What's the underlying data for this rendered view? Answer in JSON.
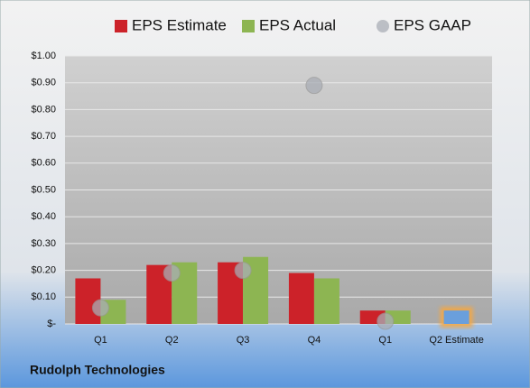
{
  "chart_data": {
    "type": "bar",
    "title": "Rudolph Technologies",
    "categories": [
      "Q1",
      "Q2",
      "Q3",
      "Q4",
      "Q1",
      "Q2 Estimate"
    ],
    "series": [
      {
        "name": "EPS Estimate",
        "type": "bar",
        "color": "#cc2229",
        "colors": [
          "#cc2229",
          "#cc2229",
          "#cc2229",
          "#cc2229",
          "#cc2229",
          "#6a9fdc"
        ],
        "values": [
          0.17,
          0.22,
          0.23,
          0.19,
          0.05,
          0.05
        ]
      },
      {
        "name": "EPS Actual",
        "type": "bar",
        "color": "#8db552",
        "values": [
          0.09,
          0.23,
          0.25,
          0.17,
          0.05,
          null
        ]
      },
      {
        "name": "EPS GAAP",
        "type": "scatter",
        "color": "#a9adb5",
        "values": [
          0.06,
          0.19,
          0.2,
          0.89,
          0.01,
          null
        ]
      }
    ],
    "ylim": [
      0,
      1
    ],
    "yticks": [
      {
        "value": 0,
        "label": "$-"
      },
      {
        "value": 0.1,
        "label": "$0.10"
      },
      {
        "value": 0.2,
        "label": "$0.20"
      },
      {
        "value": 0.3,
        "label": "$0.30"
      },
      {
        "value": 0.4,
        "label": "$0.40"
      },
      {
        "value": 0.5,
        "label": "$0.50"
      },
      {
        "value": 0.6,
        "label": "$0.60"
      },
      {
        "value": 0.7,
        "label": "$0.70"
      },
      {
        "value": 0.8,
        "label": "$0.80"
      },
      {
        "value": 0.9,
        "label": "$0.90"
      },
      {
        "value": 1,
        "label": "$1.00"
      }
    ],
    "grid": true,
    "legend": "top"
  }
}
